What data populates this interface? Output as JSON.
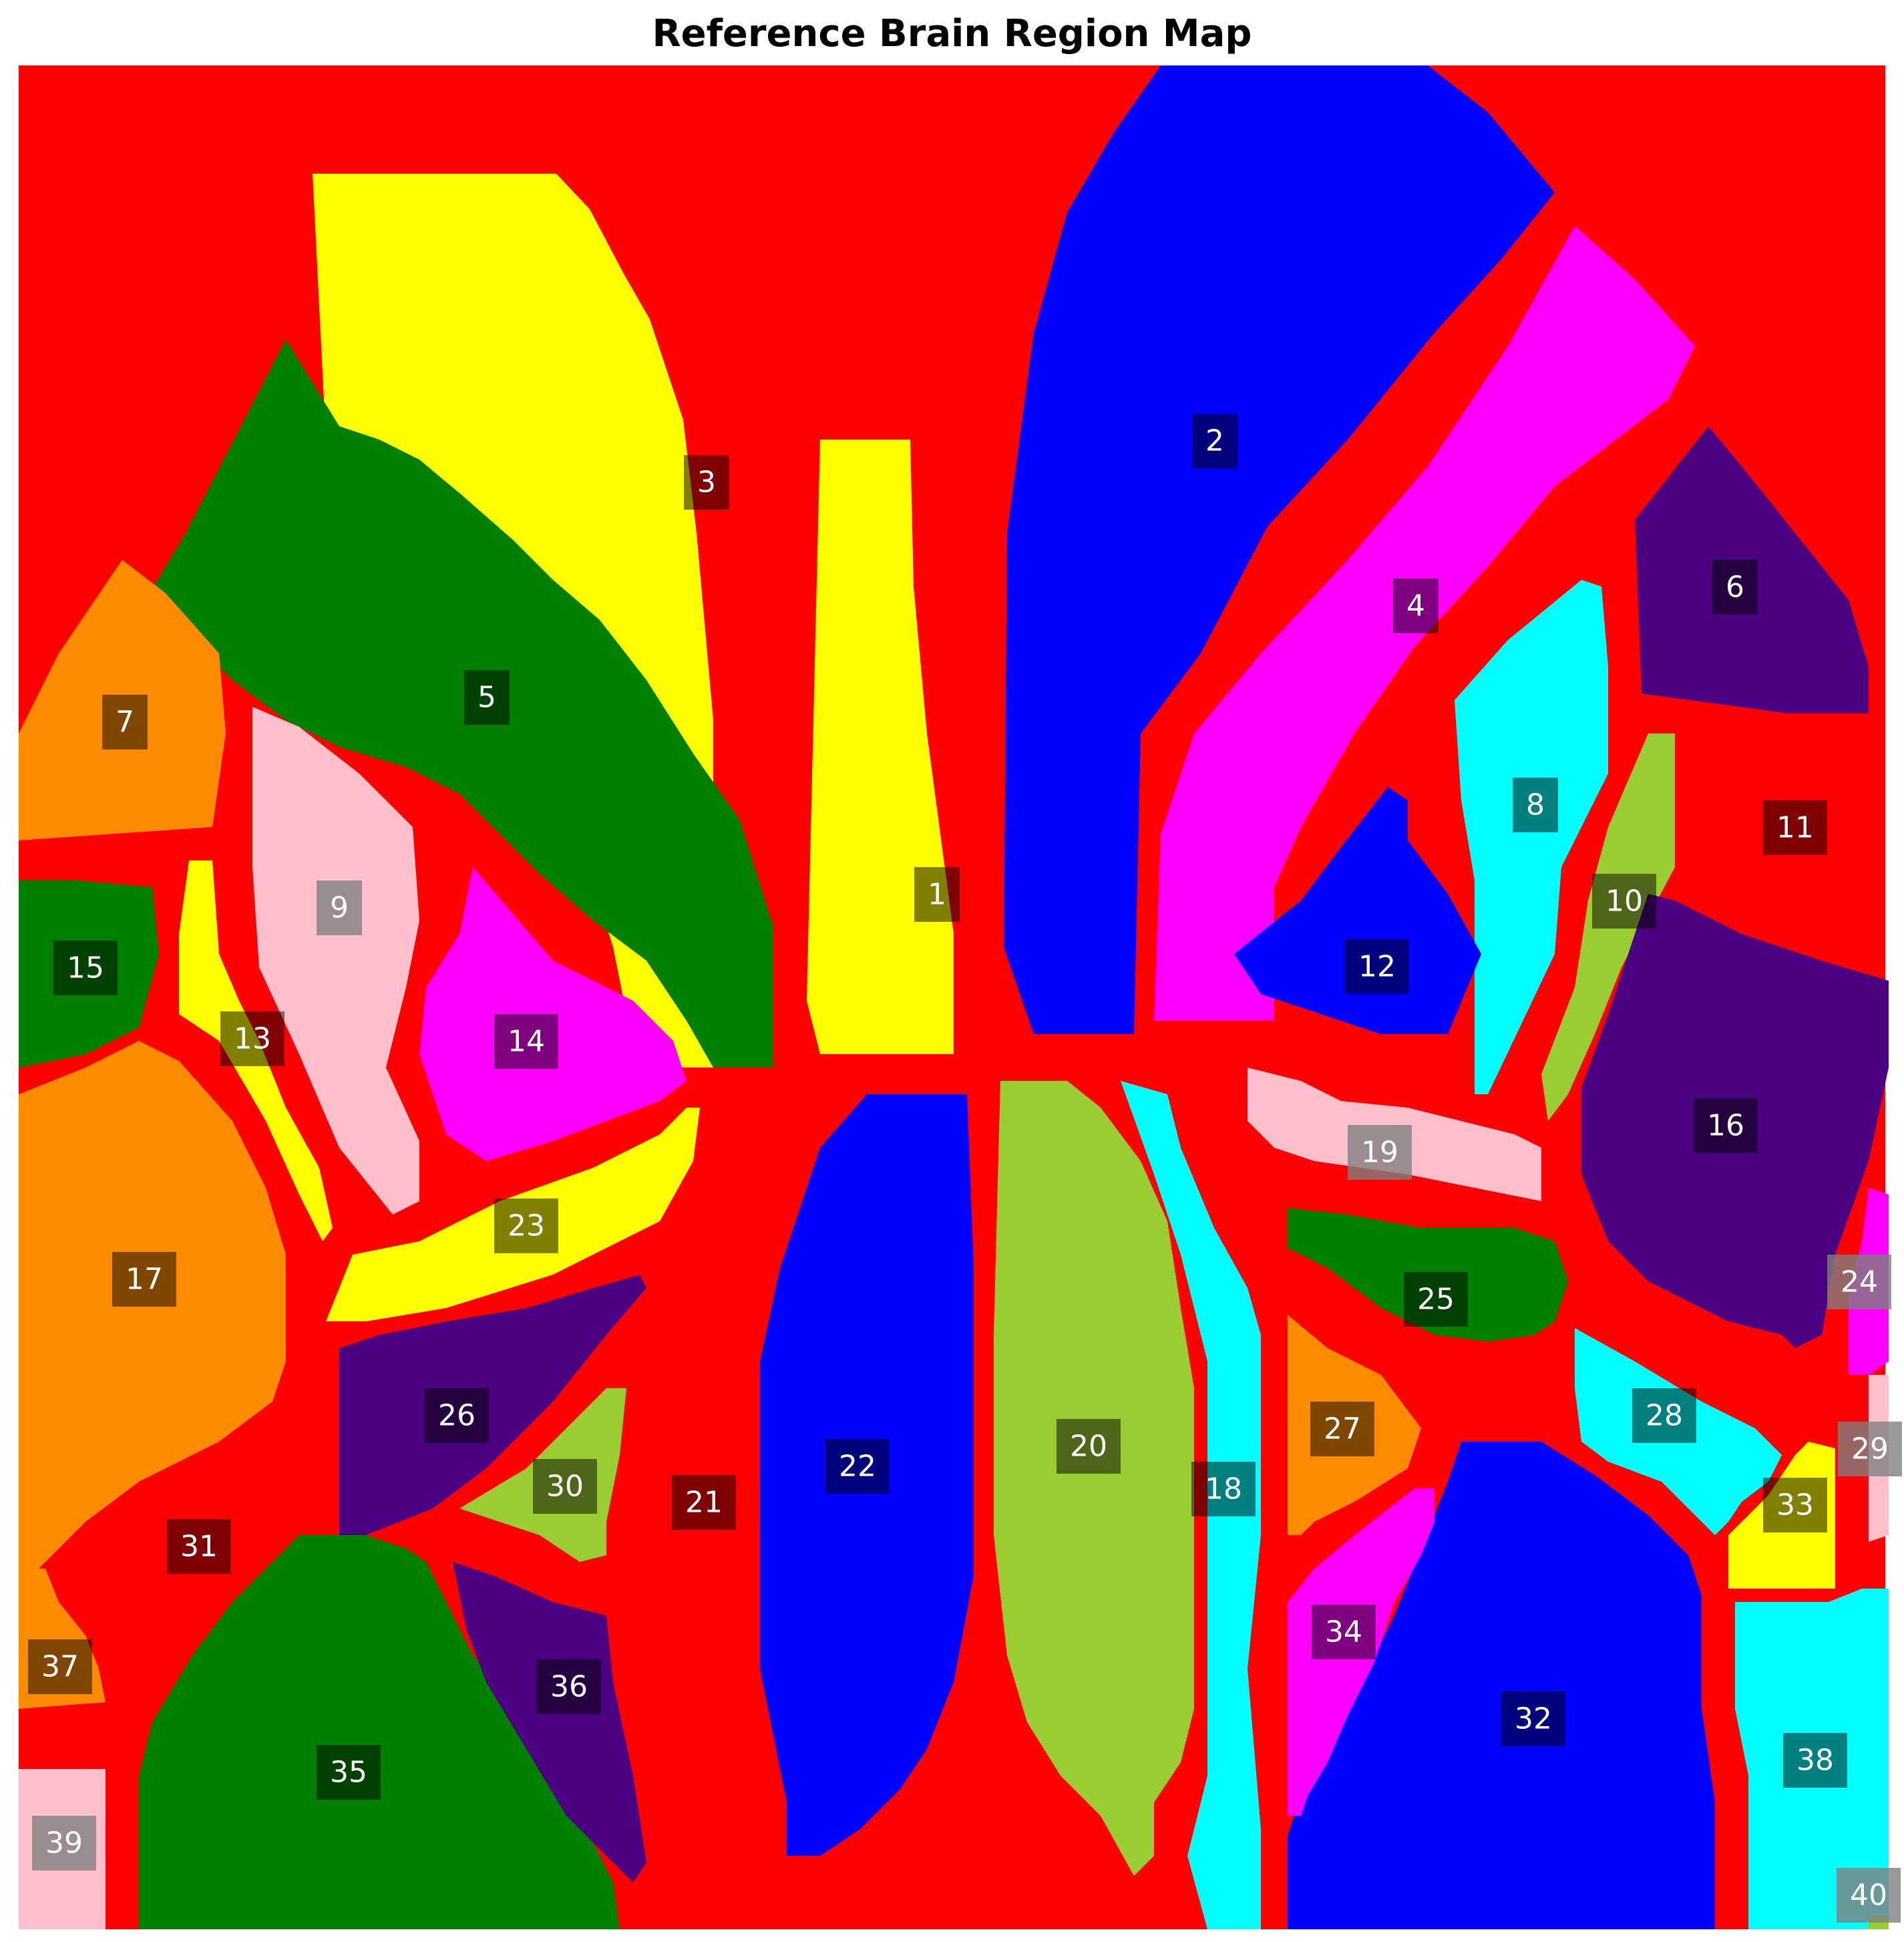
{
  "title": "Reference Brain Region Map",
  "colors": {
    "background": "#ff0000",
    "yellow": "#ffff00",
    "blue": "#0000ff",
    "magenta": "#ff00ff",
    "green": "#008000",
    "indigo": "#4b0082",
    "orange": "#ff8c00",
    "cyan": "#00ffff",
    "pink": "#ffc0cb",
    "yellowgreen": "#9acd32",
    "label_bg_dark": "rgba(0,0,0,0.5)",
    "label_bg_light": "rgba(128,128,128,0.8)",
    "label_text": "#ffffff"
  },
  "regions": [
    {
      "id": 1,
      "label": "1",
      "color": "yellow"
    },
    {
      "id": 2,
      "label": "2",
      "color": "blue"
    },
    {
      "id": 3,
      "label": "3",
      "color": "yellow"
    },
    {
      "id": 4,
      "label": "4",
      "color": "magenta"
    },
    {
      "id": 5,
      "label": "5",
      "color": "green"
    },
    {
      "id": 6,
      "label": "6",
      "color": "indigo"
    },
    {
      "id": 7,
      "label": "7",
      "color": "orange"
    },
    {
      "id": 8,
      "label": "8",
      "color": "cyan"
    },
    {
      "id": 9,
      "label": "9",
      "color": "pink"
    },
    {
      "id": 10,
      "label": "10",
      "color": "yellowgreen"
    },
    {
      "id": 11,
      "label": "11",
      "color": "background"
    },
    {
      "id": 12,
      "label": "12",
      "color": "blue"
    },
    {
      "id": 13,
      "label": "13",
      "color": "yellow"
    },
    {
      "id": 14,
      "label": "14",
      "color": "magenta"
    },
    {
      "id": 15,
      "label": "15",
      "color": "green"
    },
    {
      "id": 16,
      "label": "16",
      "color": "indigo"
    },
    {
      "id": 17,
      "label": "17",
      "color": "orange"
    },
    {
      "id": 18,
      "label": "18",
      "color": "cyan"
    },
    {
      "id": 19,
      "label": "19",
      "color": "pink"
    },
    {
      "id": 20,
      "label": "20",
      "color": "yellowgreen"
    },
    {
      "id": 21,
      "label": "21",
      "color": "background"
    },
    {
      "id": 22,
      "label": "22",
      "color": "blue"
    },
    {
      "id": 23,
      "label": "23",
      "color": "yellow"
    },
    {
      "id": 24,
      "label": "24",
      "color": "magenta"
    },
    {
      "id": 25,
      "label": "25",
      "color": "green"
    },
    {
      "id": 26,
      "label": "26",
      "color": "indigo"
    },
    {
      "id": 27,
      "label": "27",
      "color": "orange"
    },
    {
      "id": 28,
      "label": "28",
      "color": "cyan"
    },
    {
      "id": 29,
      "label": "29",
      "color": "pink"
    },
    {
      "id": 30,
      "label": "30",
      "color": "yellowgreen"
    },
    {
      "id": 31,
      "label": "31",
      "color": "background"
    },
    {
      "id": 32,
      "label": "32",
      "color": "blue"
    },
    {
      "id": 33,
      "label": "33",
      "color": "yellow"
    },
    {
      "id": 34,
      "label": "34",
      "color": "magenta"
    },
    {
      "id": 35,
      "label": "35",
      "color": "green"
    },
    {
      "id": 36,
      "label": "36",
      "color": "indigo"
    },
    {
      "id": 37,
      "label": "37",
      "color": "orange"
    },
    {
      "id": 38,
      "label": "38",
      "color": "cyan"
    },
    {
      "id": 39,
      "label": "39",
      "color": "pink"
    },
    {
      "id": 40,
      "label": "40",
      "color": "yellowgreen"
    }
  ]
}
